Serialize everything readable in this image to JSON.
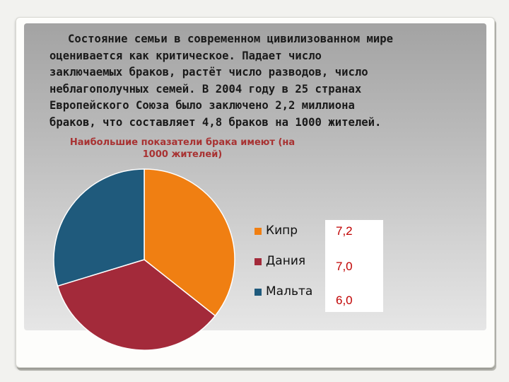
{
  "intro_text": "Состояние семьи в современном цивилизованном мире оценивается как критическое. Падает число заключаемых браков, растёт число разводов, число неблагополучных семей. В 2004 году в 25 странах Европейского Союза было заключено 2,2 миллиона браков, что составляет 4,8 браков на 1000 жителей.",
  "intro_lines": [
    "Состояние семьи в современном цивилизованном мире",
    "оценивается как критическое. Падает число",
    "заключаемых браков, растёт число разводов, число",
    "неблагополучных семей. В 2004 году в 25 странах",
    "Европейского Союза было заключено 2,2 миллиона",
    "браков, что составляет 4,8 браков на 1000 жителей."
  ],
  "chart_data": {
    "type": "pie",
    "title": "Наибольшие показатели брака имеют (на 1000 жителей)",
    "title_lines": [
      "Наибольшие показатели  брака имеют (на",
      "1000 жителей)"
    ],
    "categories": [
      "Кипр",
      "Дания",
      "Мальта"
    ],
    "values": [
      7.2,
      7.0,
      6.0
    ],
    "value_labels": [
      "7,2",
      "7,0",
      "6,0"
    ],
    "colors": [
      "#f07f12",
      "#a32a3a",
      "#1f5a7c"
    ],
    "legend_position": "right",
    "start_angle_deg": 0,
    "direction": "clockwise"
  }
}
